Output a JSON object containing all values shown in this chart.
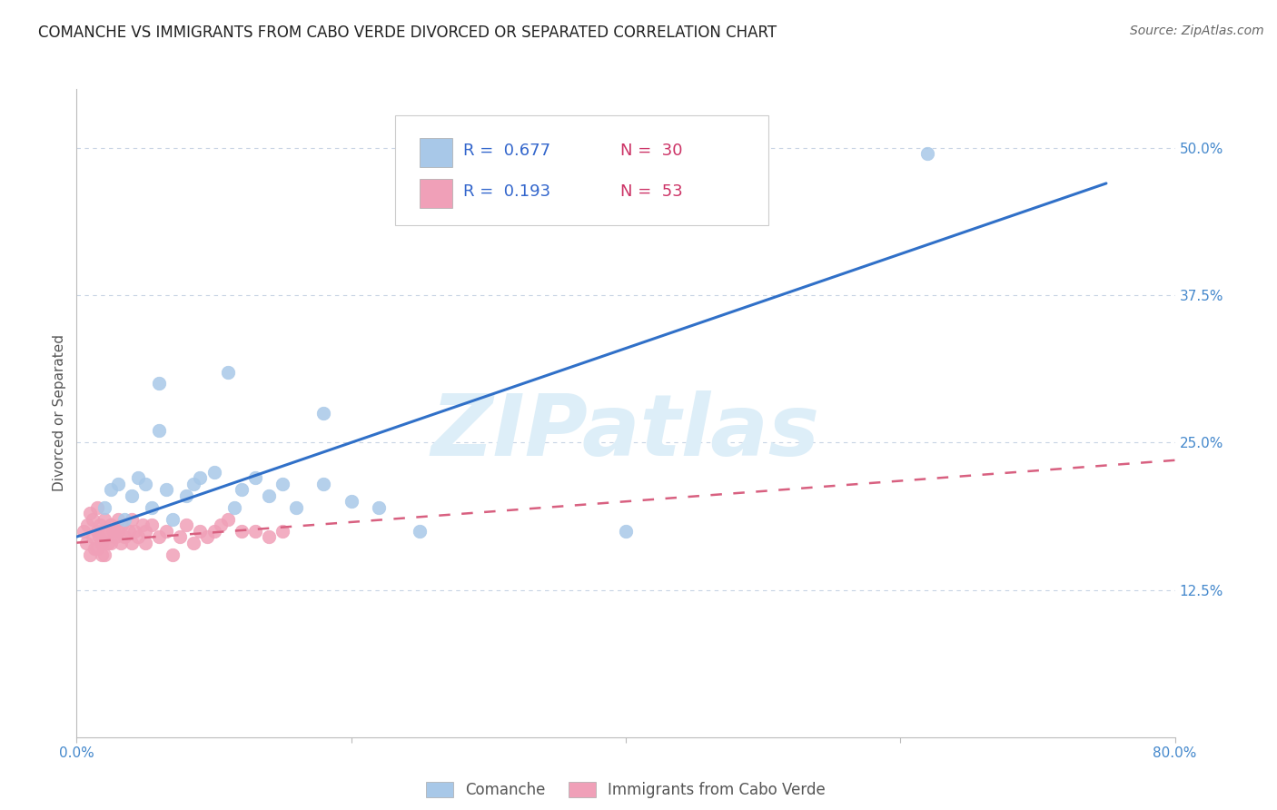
{
  "title": "COMANCHE VS IMMIGRANTS FROM CABO VERDE DIVORCED OR SEPARATED CORRELATION CHART",
  "source": "Source: ZipAtlas.com",
  "ylabel": "Divorced or Separated",
  "ytick_labels": [
    "12.5%",
    "25.0%",
    "37.5%",
    "50.0%"
  ],
  "ytick_values": [
    0.125,
    0.25,
    0.375,
    0.5
  ],
  "xlim": [
    0.0,
    0.8
  ],
  "ylim": [
    0.0,
    0.55
  ],
  "legend_blue_r": "0.677",
  "legend_blue_n": "30",
  "legend_pink_r": "0.193",
  "legend_pink_n": "53",
  "blue_color": "#a8c8e8",
  "pink_color": "#f0a0b8",
  "trendline_blue_color": "#3070c8",
  "trendline_pink_color": "#d86080",
  "watermark": "ZIPatlas",
  "watermark_color": "#ddeef8",
  "blue_scatter_x": [
    0.02,
    0.025,
    0.03,
    0.035,
    0.04,
    0.045,
    0.05,
    0.055,
    0.06,
    0.065,
    0.07,
    0.08,
    0.085,
    0.09,
    0.1,
    0.11,
    0.115,
    0.12,
    0.13,
    0.14,
    0.15,
    0.16,
    0.18,
    0.2,
    0.22,
    0.25,
    0.06,
    0.18,
    0.4,
    0.62
  ],
  "blue_scatter_y": [
    0.195,
    0.21,
    0.215,
    0.185,
    0.205,
    0.22,
    0.215,
    0.195,
    0.26,
    0.21,
    0.185,
    0.205,
    0.215,
    0.22,
    0.225,
    0.31,
    0.195,
    0.21,
    0.22,
    0.205,
    0.215,
    0.195,
    0.275,
    0.2,
    0.195,
    0.175,
    0.3,
    0.215,
    0.175,
    0.495
  ],
  "pink_scatter_x": [
    0.005,
    0.007,
    0.008,
    0.01,
    0.01,
    0.012,
    0.012,
    0.013,
    0.015,
    0.015,
    0.015,
    0.016,
    0.017,
    0.018,
    0.018,
    0.02,
    0.02,
    0.02,
    0.022,
    0.023,
    0.025,
    0.025,
    0.027,
    0.028,
    0.03,
    0.03,
    0.032,
    0.033,
    0.035,
    0.038,
    0.04,
    0.04,
    0.042,
    0.045,
    0.048,
    0.05,
    0.05,
    0.055,
    0.06,
    0.065,
    0.07,
    0.075,
    0.08,
    0.085,
    0.09,
    0.095,
    0.1,
    0.105,
    0.11,
    0.12,
    0.13,
    0.14,
    0.15
  ],
  "pink_scatter_y": [
    0.175,
    0.165,
    0.18,
    0.19,
    0.155,
    0.17,
    0.185,
    0.16,
    0.195,
    0.175,
    0.16,
    0.17,
    0.18,
    0.155,
    0.165,
    0.185,
    0.17,
    0.155,
    0.175,
    0.165,
    0.18,
    0.165,
    0.175,
    0.17,
    0.185,
    0.175,
    0.165,
    0.18,
    0.17,
    0.175,
    0.185,
    0.165,
    0.175,
    0.17,
    0.18,
    0.175,
    0.165,
    0.18,
    0.17,
    0.175,
    0.155,
    0.17,
    0.18,
    0.165,
    0.175,
    0.17,
    0.175,
    0.18,
    0.185,
    0.175,
    0.175,
    0.17,
    0.175
  ],
  "blue_trendline_x": [
    0.0,
    0.75
  ],
  "blue_trendline_y": [
    0.17,
    0.47
  ],
  "pink_trendline_x": [
    0.0,
    0.8
  ],
  "pink_trendline_y": [
    0.165,
    0.235
  ],
  "background_color": "#ffffff",
  "grid_color": "#c8d4e4",
  "title_fontsize": 12,
  "axis_label_fontsize": 11,
  "tick_label_fontsize": 11
}
